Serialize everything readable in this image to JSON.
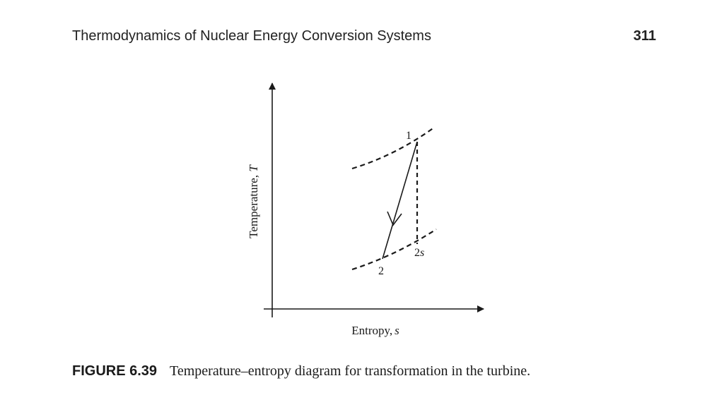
{
  "header": {
    "running_title": "Thermodynamics of Nuclear Energy Conversion Systems",
    "page_number": "311"
  },
  "figure": {
    "y_axis_label": "Temperature, ",
    "y_axis_symbol": "T",
    "x_axis_label": "Entropy,",
    "x_axis_symbol": "s",
    "points": {
      "state_1": "1",
      "state_2": "2",
      "state_2s_num": "2",
      "state_2s_sub": "s"
    }
  },
  "caption": {
    "label": "FIGURE 6.39",
    "text": "Temperature–entropy diagram for transformation in the turbine."
  }
}
